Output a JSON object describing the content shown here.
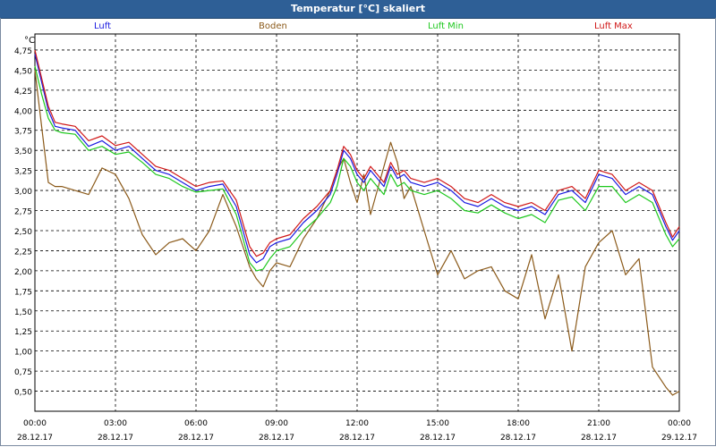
{
  "window": {
    "title": "Temperatur [°C] skaliert"
  },
  "legend": [
    {
      "name": "Luft",
      "color": "#1a1ae0"
    },
    {
      "name": "Boden",
      "color": "#8b5a1a"
    },
    {
      "name": "Luft Min",
      "color": "#1ec81e"
    },
    {
      "name": "Luft Max",
      "color": "#d01818"
    }
  ],
  "chart_data": {
    "type": "line",
    "title": "Temperatur [°C] skaliert",
    "ylabel": "°C",
    "ylim": [
      0.25,
      4.95
    ],
    "yticks": [
      "4,75",
      "4,50",
      "4,25",
      "4,00",
      "3,75",
      "3,50",
      "3,25",
      "3,00",
      "2,75",
      "2,50",
      "2,25",
      "2,00",
      "1,75",
      "1,50",
      "1,25",
      "1,00",
      "0,75",
      "0,50"
    ],
    "xlim": [
      0,
      24
    ],
    "xticks": [
      {
        "time": "00:00",
        "date": "28.12.17"
      },
      {
        "time": "03:00",
        "date": "28.12.17"
      },
      {
        "time": "06:00",
        "date": "28.12.17"
      },
      {
        "time": "09:00",
        "date": "28.12.17"
      },
      {
        "time": "12:00",
        "date": "28.12.17"
      },
      {
        "time": "15:00",
        "date": "28.12.17"
      },
      {
        "time": "18:00",
        "date": "28.12.17"
      },
      {
        "time": "21:00",
        "date": "28.12.17"
      },
      {
        "time": "00:00",
        "date": "29.12.17"
      }
    ],
    "grid": true,
    "x_hours": [
      0,
      0.25,
      0.5,
      0.75,
      1,
      1.5,
      2,
      2.5,
      3,
      3.5,
      4,
      4.5,
      5,
      5.5,
      6,
      6.5,
      7,
      7.5,
      8,
      8.25,
      8.5,
      8.75,
      9,
      9.5,
      10,
      10.5,
      11,
      11.25,
      11.5,
      11.75,
      12,
      12.25,
      12.5,
      13,
      13.25,
      13.5,
      13.75,
      14,
      14.5,
      15,
      15.5,
      16,
      16.5,
      17,
      17.5,
      18,
      18.5,
      19,
      19.5,
      20,
      20.5,
      21,
      21.5,
      22,
      22.5,
      23,
      23.5,
      23.75,
      24
    ],
    "series": [
      {
        "name": "Luft",
        "color": "#1a1ae0",
        "values": [
          4.7,
          4.35,
          4.0,
          3.8,
          3.78,
          3.75,
          3.55,
          3.62,
          3.5,
          3.55,
          3.4,
          3.25,
          3.2,
          3.1,
          3.0,
          3.05,
          3.08,
          2.8,
          2.2,
          2.1,
          2.15,
          2.3,
          2.35,
          2.4,
          2.6,
          2.75,
          2.95,
          3.2,
          3.5,
          3.4,
          3.2,
          3.1,
          3.25,
          3.05,
          3.3,
          3.15,
          3.2,
          3.1,
          3.05,
          3.1,
          3.0,
          2.85,
          2.8,
          2.9,
          2.8,
          2.75,
          2.8,
          2.7,
          2.95,
          3.0,
          2.85,
          3.2,
          3.15,
          2.95,
          3.05,
          2.95,
          2.55,
          2.38,
          2.5
        ]
      },
      {
        "name": "Boden",
        "color": "#8b5a1a",
        "values": [
          4.5,
          3.8,
          3.1,
          3.05,
          3.05,
          3.0,
          2.95,
          3.28,
          3.2,
          2.9,
          2.45,
          2.2,
          2.35,
          2.4,
          2.25,
          2.5,
          2.95,
          2.55,
          2.05,
          1.9,
          1.8,
          2.0,
          2.1,
          2.05,
          2.4,
          2.65,
          3.0,
          3.25,
          3.4,
          3.1,
          2.85,
          3.2,
          2.7,
          3.3,
          3.6,
          3.35,
          2.9,
          3.05,
          2.5,
          1.95,
          2.25,
          1.9,
          2.0,
          2.05,
          1.75,
          1.65,
          2.2,
          1.4,
          1.95,
          1.0,
          2.05,
          2.35,
          2.5,
          1.95,
          2.15,
          0.8,
          0.55,
          0.45,
          0.5
        ]
      },
      {
        "name": "Luft Min",
        "color": "#1ec81e",
        "values": [
          4.55,
          4.2,
          3.9,
          3.75,
          3.72,
          3.7,
          3.5,
          3.55,
          3.45,
          3.48,
          3.35,
          3.2,
          3.15,
          3.05,
          2.98,
          3.0,
          3.02,
          2.7,
          2.1,
          2.0,
          2.02,
          2.15,
          2.25,
          2.3,
          2.5,
          2.65,
          2.85,
          3.05,
          3.4,
          3.3,
          3.1,
          3.0,
          3.15,
          2.95,
          3.2,
          3.05,
          3.1,
          3.0,
          2.95,
          3.0,
          2.9,
          2.75,
          2.72,
          2.82,
          2.72,
          2.65,
          2.7,
          2.6,
          2.88,
          2.92,
          2.75,
          3.05,
          3.05,
          2.85,
          2.95,
          2.85,
          2.45,
          2.3,
          2.4
        ]
      },
      {
        "name": "Luft Max",
        "color": "#d01818",
        "values": [
          4.75,
          4.4,
          4.05,
          3.85,
          3.83,
          3.8,
          3.62,
          3.68,
          3.56,
          3.6,
          3.45,
          3.3,
          3.25,
          3.15,
          3.05,
          3.1,
          3.12,
          2.88,
          2.3,
          2.18,
          2.22,
          2.35,
          2.4,
          2.45,
          2.65,
          2.8,
          3.0,
          3.25,
          3.55,
          3.45,
          3.25,
          3.15,
          3.3,
          3.1,
          3.35,
          3.2,
          3.25,
          3.15,
          3.1,
          3.15,
          3.05,
          2.9,
          2.85,
          2.95,
          2.85,
          2.8,
          2.85,
          2.75,
          3.0,
          3.05,
          2.9,
          3.25,
          3.2,
          3.0,
          3.1,
          3.0,
          2.6,
          2.42,
          2.55
        ]
      }
    ]
  }
}
